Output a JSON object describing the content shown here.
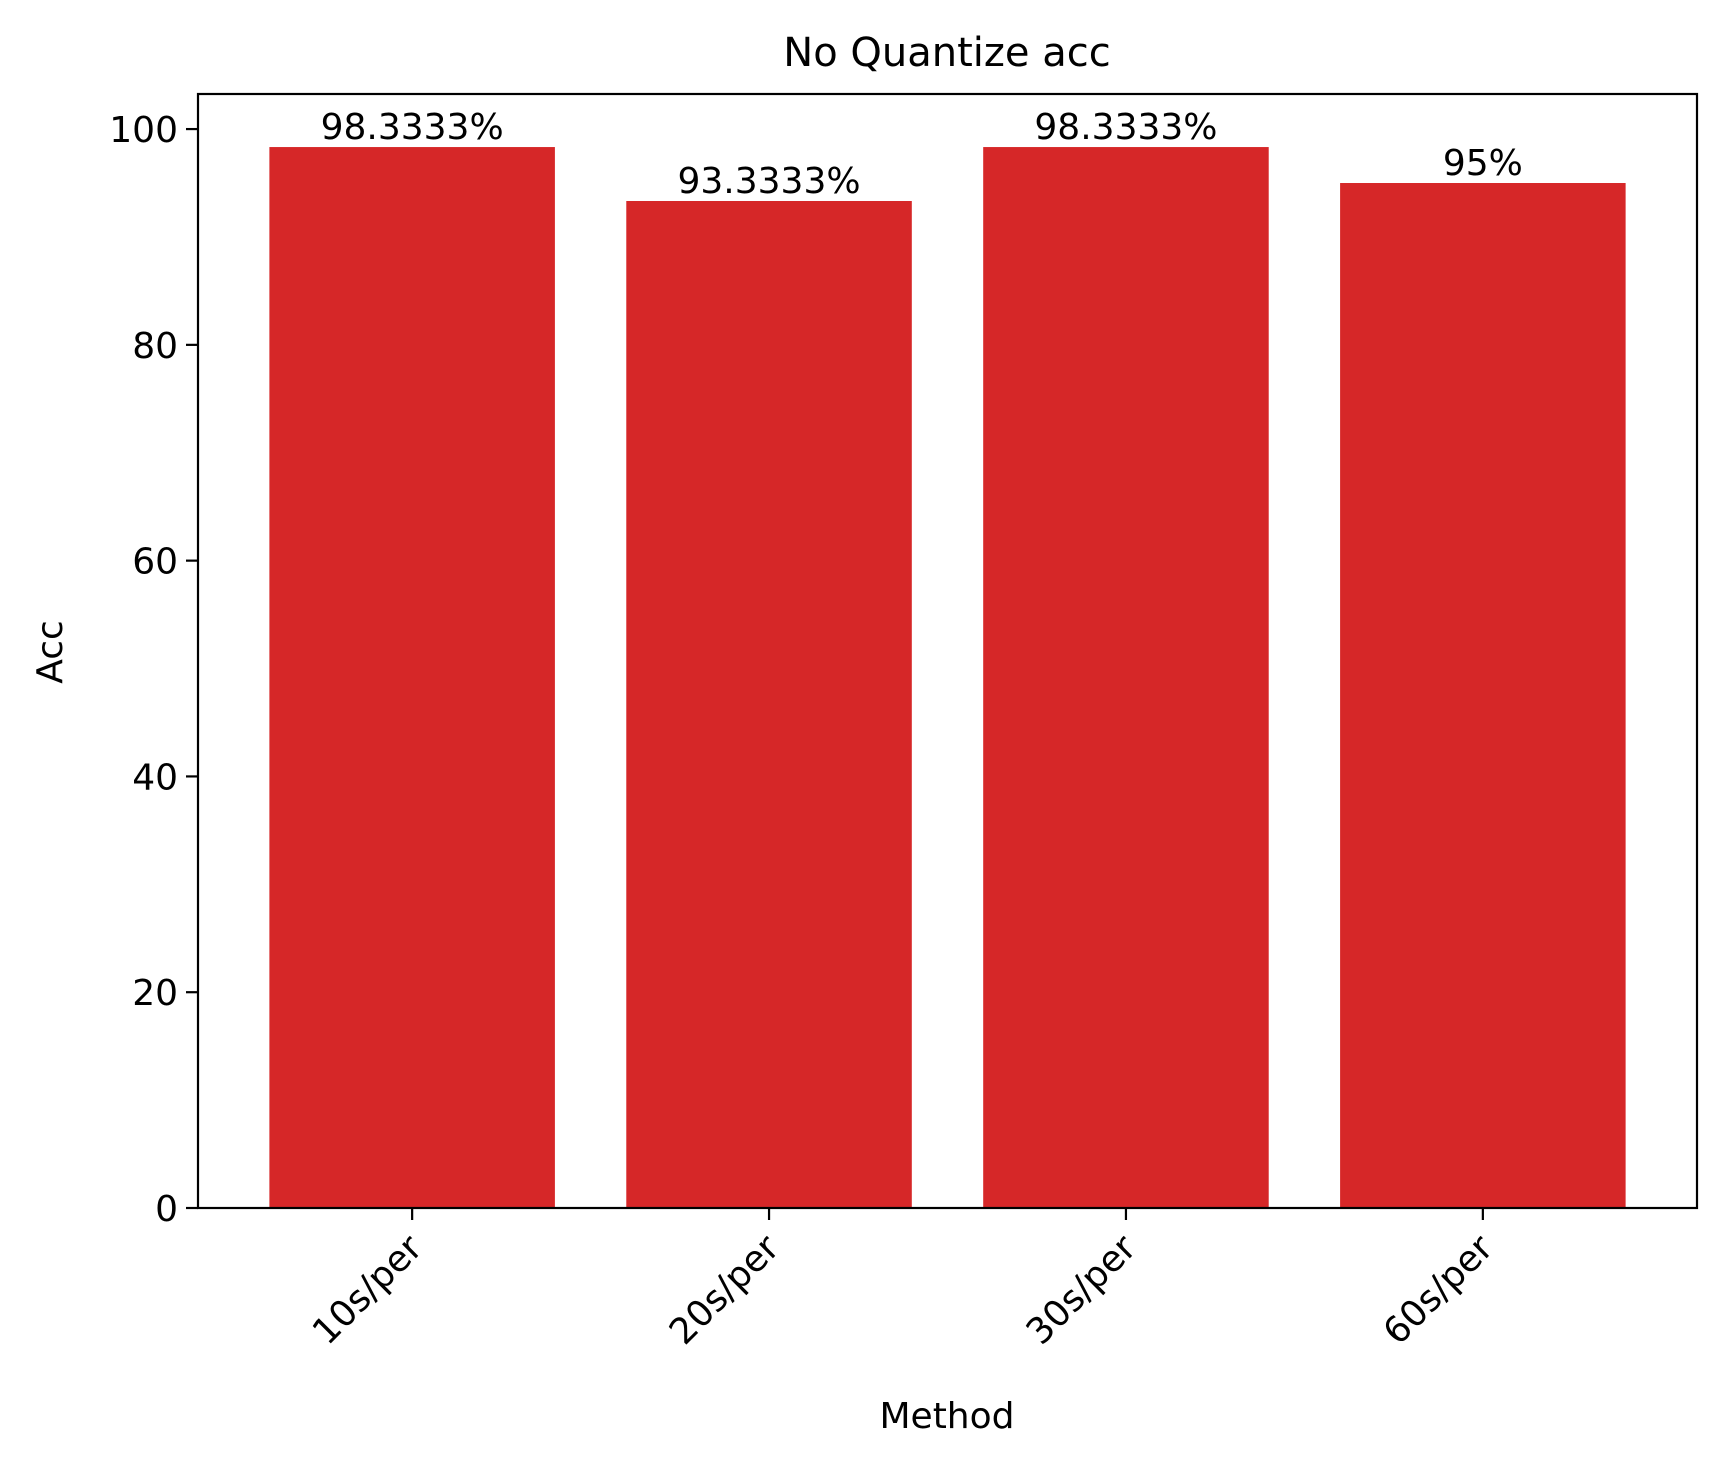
{
  "chart_data": {
    "type": "bar",
    "title": "No Quantize acc",
    "xlabel": "Method",
    "ylabel": "Acc",
    "categories": [
      "10s/per",
      "20s/per",
      "30s/per",
      "60s/per"
    ],
    "values": [
      98.3333,
      93.3333,
      98.3333,
      95
    ],
    "data_labels": [
      "98.3333%",
      "93.3333%",
      "98.3333%",
      "95%"
    ],
    "ylim": [
      0,
      103.25
    ],
    "yticks": [
      0,
      20,
      40,
      60,
      80,
      100
    ],
    "grid": false,
    "legend": "none",
    "bar_color": "#d62728"
  }
}
